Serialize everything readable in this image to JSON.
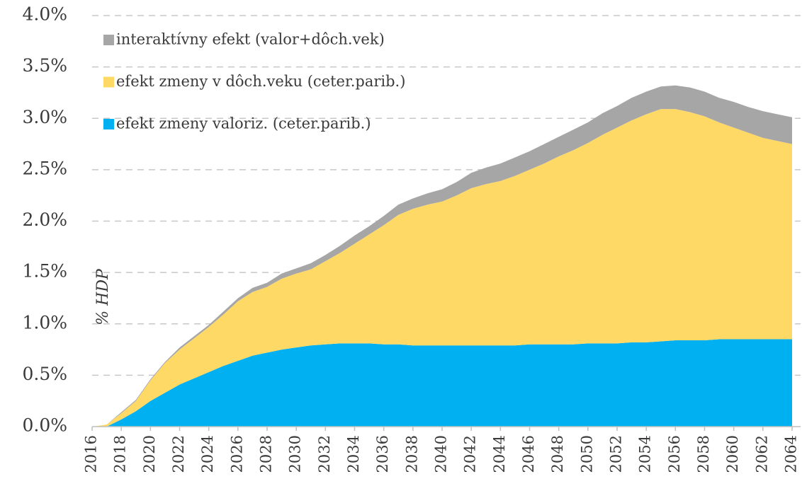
{
  "chart_data": {
    "type": "stacked_area",
    "y_label": "% HDP",
    "x": [
      2016,
      2017,
      2018,
      2019,
      2020,
      2021,
      2022,
      2023,
      2024,
      2025,
      2026,
      2027,
      2028,
      2029,
      2030,
      2031,
      2032,
      2033,
      2034,
      2035,
      2036,
      2037,
      2038,
      2039,
      2040,
      2041,
      2042,
      2043,
      2044,
      2045,
      2046,
      2047,
      2048,
      2049,
      2050,
      2051,
      2052,
      2053,
      2054,
      2055,
      2056,
      2057,
      2058,
      2059,
      2060,
      2061,
      2062,
      2063,
      2064
    ],
    "series": [
      {
        "name": "efekt zmeny valoriz. (ceter.parib.)",
        "color": "#00b0f0",
        "values": [
          0,
          0,
          0.07,
          0.15,
          0.25,
          0.33,
          0.41,
          0.47,
          0.53,
          0.59,
          0.64,
          0.69,
          0.72,
          0.75,
          0.77,
          0.79,
          0.8,
          0.81,
          0.81,
          0.81,
          0.8,
          0.8,
          0.79,
          0.79,
          0.79,
          0.79,
          0.79,
          0.79,
          0.79,
          0.79,
          0.8,
          0.8,
          0.8,
          0.8,
          0.81,
          0.81,
          0.81,
          0.82,
          0.82,
          0.83,
          0.84,
          0.84,
          0.84,
          0.85,
          0.85,
          0.85,
          0.85,
          0.85,
          0.85
        ]
      },
      {
        "name": "efekt zmeny v dôch.veku  (ceter.parib.)",
        "color": "#ffd966",
        "values": [
          0,
          0.02,
          0.06,
          0.1,
          0.2,
          0.29,
          0.34,
          0.39,
          0.44,
          0.5,
          0.58,
          0.62,
          0.64,
          0.69,
          0.72,
          0.74,
          0.81,
          0.88,
          0.97,
          1.06,
          1.16,
          1.26,
          1.33,
          1.37,
          1.4,
          1.46,
          1.53,
          1.57,
          1.6,
          1.65,
          1.7,
          1.76,
          1.83,
          1.89,
          1.95,
          2.03,
          2.1,
          2.16,
          2.22,
          2.26,
          2.25,
          2.22,
          2.18,
          2.11,
          2.06,
          2.01,
          1.96,
          1.93,
          1.9
        ]
      },
      {
        "name": "interaktívny efekt (valor+dôch.vek)",
        "color": "#a6a6a6",
        "values": [
          0,
          0,
          0.01,
          0.01,
          0.01,
          0.01,
          0.02,
          0.02,
          0.02,
          0.03,
          0.03,
          0.04,
          0.04,
          0.05,
          0.05,
          0.06,
          0.06,
          0.07,
          0.08,
          0.08,
          0.09,
          0.1,
          0.1,
          0.11,
          0.12,
          0.13,
          0.15,
          0.16,
          0.17,
          0.18,
          0.18,
          0.19,
          0.19,
          0.2,
          0.2,
          0.21,
          0.21,
          0.22,
          0.22,
          0.22,
          0.23,
          0.24,
          0.24,
          0.24,
          0.25,
          0.25,
          0.26,
          0.26,
          0.26
        ]
      }
    ],
    "xlim": [
      2016,
      2064
    ],
    "xticks": [
      2016,
      2018,
      2020,
      2022,
      2024,
      2026,
      2028,
      2030,
      2032,
      2034,
      2036,
      2038,
      2040,
      2042,
      2044,
      2046,
      2048,
      2050,
      2052,
      2054,
      2056,
      2058,
      2060,
      2062,
      2064
    ],
    "ylim": [
      0,
      4
    ],
    "yticks": [
      {
        "value": 0,
        "label": "0.0%"
      },
      {
        "value": 0.5,
        "label": "0.5%"
      },
      {
        "value": 1.0,
        "label": "1.0%"
      },
      {
        "value": 1.5,
        "label": "1.5%"
      },
      {
        "value": 2.0,
        "label": "2.0%"
      },
      {
        "value": 2.5,
        "label": "2.5%"
      },
      {
        "value": 3.0,
        "label": "3.0%"
      },
      {
        "value": 3.5,
        "label": "3.5%"
      },
      {
        "value": 4.0,
        "label": "4.0%"
      }
    ],
    "grid": true,
    "legend": "top-left"
  }
}
